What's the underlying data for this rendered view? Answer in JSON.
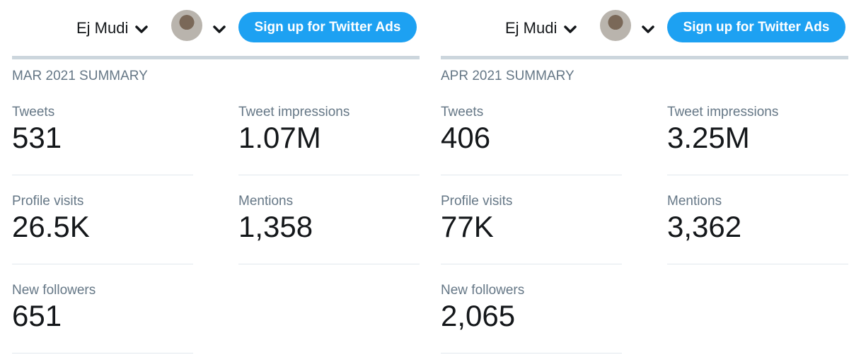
{
  "panels": [
    {
      "header": {
        "user_name": "Ej Mudi",
        "button": "Sign up for Twitter Ads"
      },
      "summary_title": "MAR 2021 SUMMARY",
      "stats": [
        {
          "label": "Tweets",
          "value": "531"
        },
        {
          "label": "Tweet impressions",
          "value": "1.07M"
        },
        {
          "label": "Profile visits",
          "value": "26.5K"
        },
        {
          "label": "Mentions",
          "value": "1,358"
        },
        {
          "label": "New followers",
          "value": "651"
        }
      ]
    },
    {
      "header": {
        "user_name": "Ej Mudi",
        "button": "Sign up for Twitter Ads"
      },
      "summary_title": "APR 2021 SUMMARY",
      "stats": [
        {
          "label": "Tweets",
          "value": "406"
        },
        {
          "label": "Tweet impressions",
          "value": "3.25M"
        },
        {
          "label": "Profile visits",
          "value": "77K"
        },
        {
          "label": "Mentions",
          "value": "3,362"
        },
        {
          "label": "New followers",
          "value": "2,065"
        }
      ]
    }
  ]
}
